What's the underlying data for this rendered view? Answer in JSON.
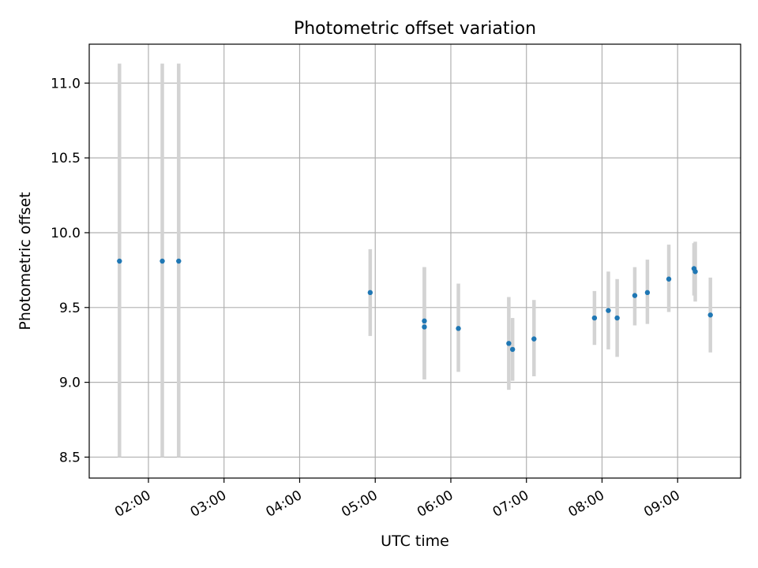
{
  "chart_data": {
    "type": "scatter",
    "title": "Photometric offset variation",
    "xlabel": "UTC time",
    "ylabel": "Photometric offset",
    "x_axis_type": "time",
    "xlim": [
      "01:13",
      "09:50"
    ],
    "ylim": [
      8.36,
      11.26
    ],
    "grid": true,
    "x_ticks": [
      "02:00",
      "03:00",
      "04:00",
      "05:00",
      "06:00",
      "07:00",
      "08:00",
      "09:00"
    ],
    "y_ticks": [
      "8.5",
      "9.0",
      "9.5",
      "10.0",
      "10.5",
      "11.0"
    ],
    "colors": {
      "point": "#1f77b4",
      "errorbar": "#d3d3d3",
      "grid": "#b0b0b0"
    },
    "series": [
      {
        "points": [
          {
            "x": "01:37",
            "y": 9.81,
            "ylow": 8.5,
            "yhigh": 11.13
          },
          {
            "x": "02:11",
            "y": 9.81,
            "ylow": 8.5,
            "yhigh": 11.13
          },
          {
            "x": "02:24",
            "y": 9.81,
            "ylow": 8.5,
            "yhigh": 11.13
          },
          {
            "x": "04:56",
            "y": 9.6,
            "ylow": 9.31,
            "yhigh": 9.89
          },
          {
            "x": "05:39",
            "y": 9.41,
            "ylow": 9.02,
            "yhigh": 9.77
          },
          {
            "x": "05:39",
            "y": 9.37,
            "ylow": 9.02,
            "yhigh": 9.77
          },
          {
            "x": "06:06",
            "y": 9.36,
            "ylow": 9.07,
            "yhigh": 9.66
          },
          {
            "x": "06:46",
            "y": 9.26,
            "ylow": 8.95,
            "yhigh": 9.57
          },
          {
            "x": "06:49",
            "y": 9.22,
            "ylow": 9.01,
            "yhigh": 9.43
          },
          {
            "x": "07:06",
            "y": 9.29,
            "ylow": 9.04,
            "yhigh": 9.55
          },
          {
            "x": "07:54",
            "y": 9.43,
            "ylow": 9.25,
            "yhigh": 9.61
          },
          {
            "x": "08:05",
            "y": 9.48,
            "ylow": 9.22,
            "yhigh": 9.74
          },
          {
            "x": "08:12",
            "y": 9.43,
            "ylow": 9.17,
            "yhigh": 9.69
          },
          {
            "x": "08:26",
            "y": 9.58,
            "ylow": 9.38,
            "yhigh": 9.77
          },
          {
            "x": "08:36",
            "y": 9.6,
            "ylow": 9.39,
            "yhigh": 9.82
          },
          {
            "x": "08:53",
            "y": 9.69,
            "ylow": 9.47,
            "yhigh": 9.92
          },
          {
            "x": "09:13",
            "y": 9.76,
            "ylow": 9.58,
            "yhigh": 9.93
          },
          {
            "x": "09:14",
            "y": 9.74,
            "ylow": 9.54,
            "yhigh": 9.94
          },
          {
            "x": "09:26",
            "y": 9.45,
            "ylow": 9.2,
            "yhigh": 9.7
          }
        ]
      }
    ]
  }
}
